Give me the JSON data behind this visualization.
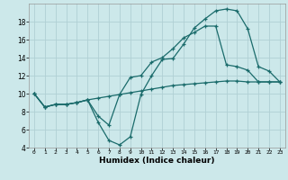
{
  "xlabel": "Humidex (Indice chaleur)",
  "bg_color": "#cce8ea",
  "grid_color": "#b0d0d4",
  "line_color": "#1a6b6b",
  "xlim": [
    -0.5,
    23.5
  ],
  "ylim": [
    4,
    20
  ],
  "xticks": [
    0,
    1,
    2,
    3,
    4,
    5,
    6,
    7,
    8,
    9,
    10,
    11,
    12,
    13,
    14,
    15,
    16,
    17,
    18,
    19,
    20,
    21,
    22,
    23
  ],
  "yticks": [
    4,
    6,
    8,
    10,
    12,
    14,
    16,
    18
  ],
  "line1_x": [
    0,
    1,
    2,
    3,
    4,
    5,
    6,
    7,
    8,
    9,
    10,
    11,
    12,
    13,
    14,
    15,
    16,
    17,
    18,
    19,
    20,
    21,
    22,
    23
  ],
  "line1_y": [
    10.0,
    8.5,
    8.8,
    8.8,
    9.0,
    9.3,
    6.8,
    4.8,
    4.3,
    5.2,
    9.9,
    12.0,
    13.8,
    13.9,
    15.5,
    17.3,
    18.3,
    19.2,
    19.4,
    19.2,
    17.2,
    13.0,
    12.5,
    11.3
  ],
  "line2_x": [
    0,
    1,
    2,
    3,
    4,
    5,
    6,
    7,
    8,
    9,
    10,
    11,
    12,
    13,
    14,
    15,
    16,
    17,
    18,
    19,
    20,
    21,
    22,
    23
  ],
  "line2_y": [
    10.0,
    8.5,
    8.8,
    8.8,
    9.0,
    9.3,
    7.5,
    6.5,
    9.9,
    11.8,
    12.0,
    13.5,
    14.0,
    15.0,
    16.2,
    16.8,
    17.5,
    17.5,
    13.2,
    13.0,
    12.6,
    11.3,
    11.3,
    11.3
  ],
  "line3_x": [
    0,
    1,
    2,
    3,
    4,
    5,
    6,
    7,
    8,
    9,
    10,
    11,
    12,
    13,
    14,
    15,
    16,
    17,
    18,
    19,
    20,
    21,
    22,
    23
  ],
  "line3_y": [
    10.0,
    8.5,
    8.8,
    8.8,
    9.0,
    9.3,
    9.5,
    9.7,
    9.9,
    10.1,
    10.3,
    10.5,
    10.7,
    10.9,
    11.0,
    11.1,
    11.2,
    11.3,
    11.4,
    11.4,
    11.3,
    11.3,
    11.3,
    11.3
  ]
}
